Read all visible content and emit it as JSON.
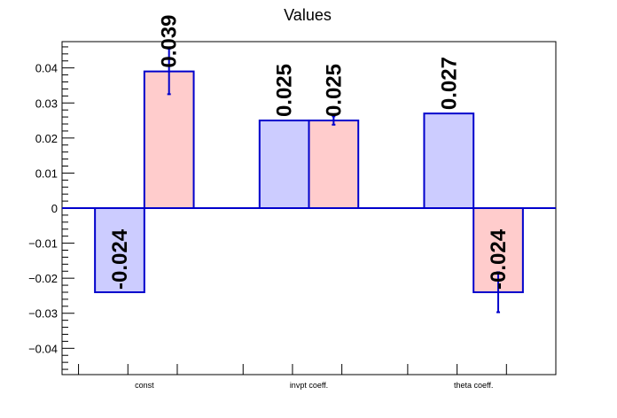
{
  "chart_data": {
    "type": "bar",
    "title": "Values",
    "xlabel": "",
    "ylabel": "",
    "categories": [
      "const",
      "invpt coeff.",
      "theta coeff."
    ],
    "ylim": [
      -0.0475,
      0.0475
    ],
    "yticks": [
      -0.04,
      -0.03,
      -0.02,
      -0.01,
      0,
      0.01,
      0.02,
      0.03,
      0.04
    ],
    "ytick_labels": [
      "−0.04",
      "−0.03",
      "−0.02",
      "−0.01",
      "0",
      "0.01",
      "0.02",
      "0.03",
      "0.04"
    ],
    "grid": false,
    "legend": "none",
    "series": [
      {
        "values": [
          -0.024,
          0.025,
          0.027
        ],
        "labels": [
          "-0.024",
          "0.025",
          "0.027"
        ],
        "errors": [
          0,
          0,
          0
        ],
        "fill": "#ccccff",
        "edge": "#0000cc"
      },
      {
        "values": [
          0.039,
          0.025,
          -0.024
        ],
        "labels": [
          "0.039",
          "0.025",
          "-0.024"
        ],
        "errors": [
          0.0065,
          0.0012,
          0.0057
        ],
        "fill": "#ffcccc",
        "edge": "#0000cc"
      }
    ],
    "colors": {
      "axis": "#000000",
      "zero_line": "#0000cc",
      "error_bar": "#0000cc"
    }
  }
}
